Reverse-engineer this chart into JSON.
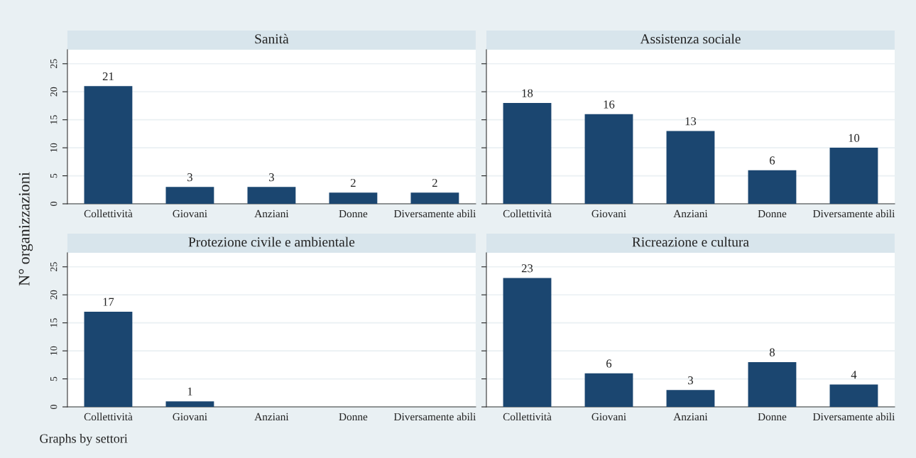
{
  "chart_data": [
    {
      "type": "bar",
      "title": "Sanità",
      "ylabel": "N° organizzazioni",
      "categories": [
        "Collettività",
        "Giovani",
        "Anziani",
        "Donne",
        "Diversamente abili"
      ],
      "values": [
        21,
        3,
        3,
        2,
        2
      ],
      "color": "#1b4670",
      "ylim": [
        0,
        27.5
      ],
      "yticks": [
        0,
        5,
        10,
        15,
        20,
        25
      ],
      "grid": "y",
      "data_labels": true
    },
    {
      "type": "bar",
      "title": "Assistenza sociale",
      "categories": [
        "Collettività",
        "Giovani",
        "Anziani",
        "Donne",
        "Diversamente abili"
      ],
      "values": [
        18,
        16,
        13,
        6,
        10
      ],
      "color": "#1b4670",
      "ylim": [
        0,
        27.5
      ],
      "yticks": [
        0,
        5,
        10,
        15,
        20,
        25
      ],
      "grid": "y",
      "data_labels": true,
      "tick_labels": "x"
    },
    {
      "type": "bar",
      "title": "Protezione civile e ambientale",
      "annotations": [
        "Graphs by settori"
      ],
      "categories": [
        "Collettività",
        "Giovani",
        "Anziani",
        "Donne",
        "Diversamente abili"
      ],
      "values": [
        17,
        1,
        null,
        null,
        null
      ],
      "color": "#1b4670",
      "ylim": [
        0,
        27.5
      ],
      "yticks": [
        0,
        5,
        10,
        15,
        20,
        25
      ],
      "grid": "y",
      "data_labels": true
    },
    {
      "type": "bar",
      "title": "Ricreazione e cultura",
      "categories": [
        "Collettività",
        "Giovani",
        "Anziani",
        "Donne",
        "Diversamente abili"
      ],
      "values": [
        23,
        6,
        3,
        8,
        4
      ],
      "color": "#1b4670",
      "ylim": [
        0,
        27.5
      ],
      "yticks": [
        0,
        5,
        10,
        15,
        20,
        25
      ],
      "grid": "y",
      "data_labels": true,
      "tick_labels": "x"
    }
  ]
}
